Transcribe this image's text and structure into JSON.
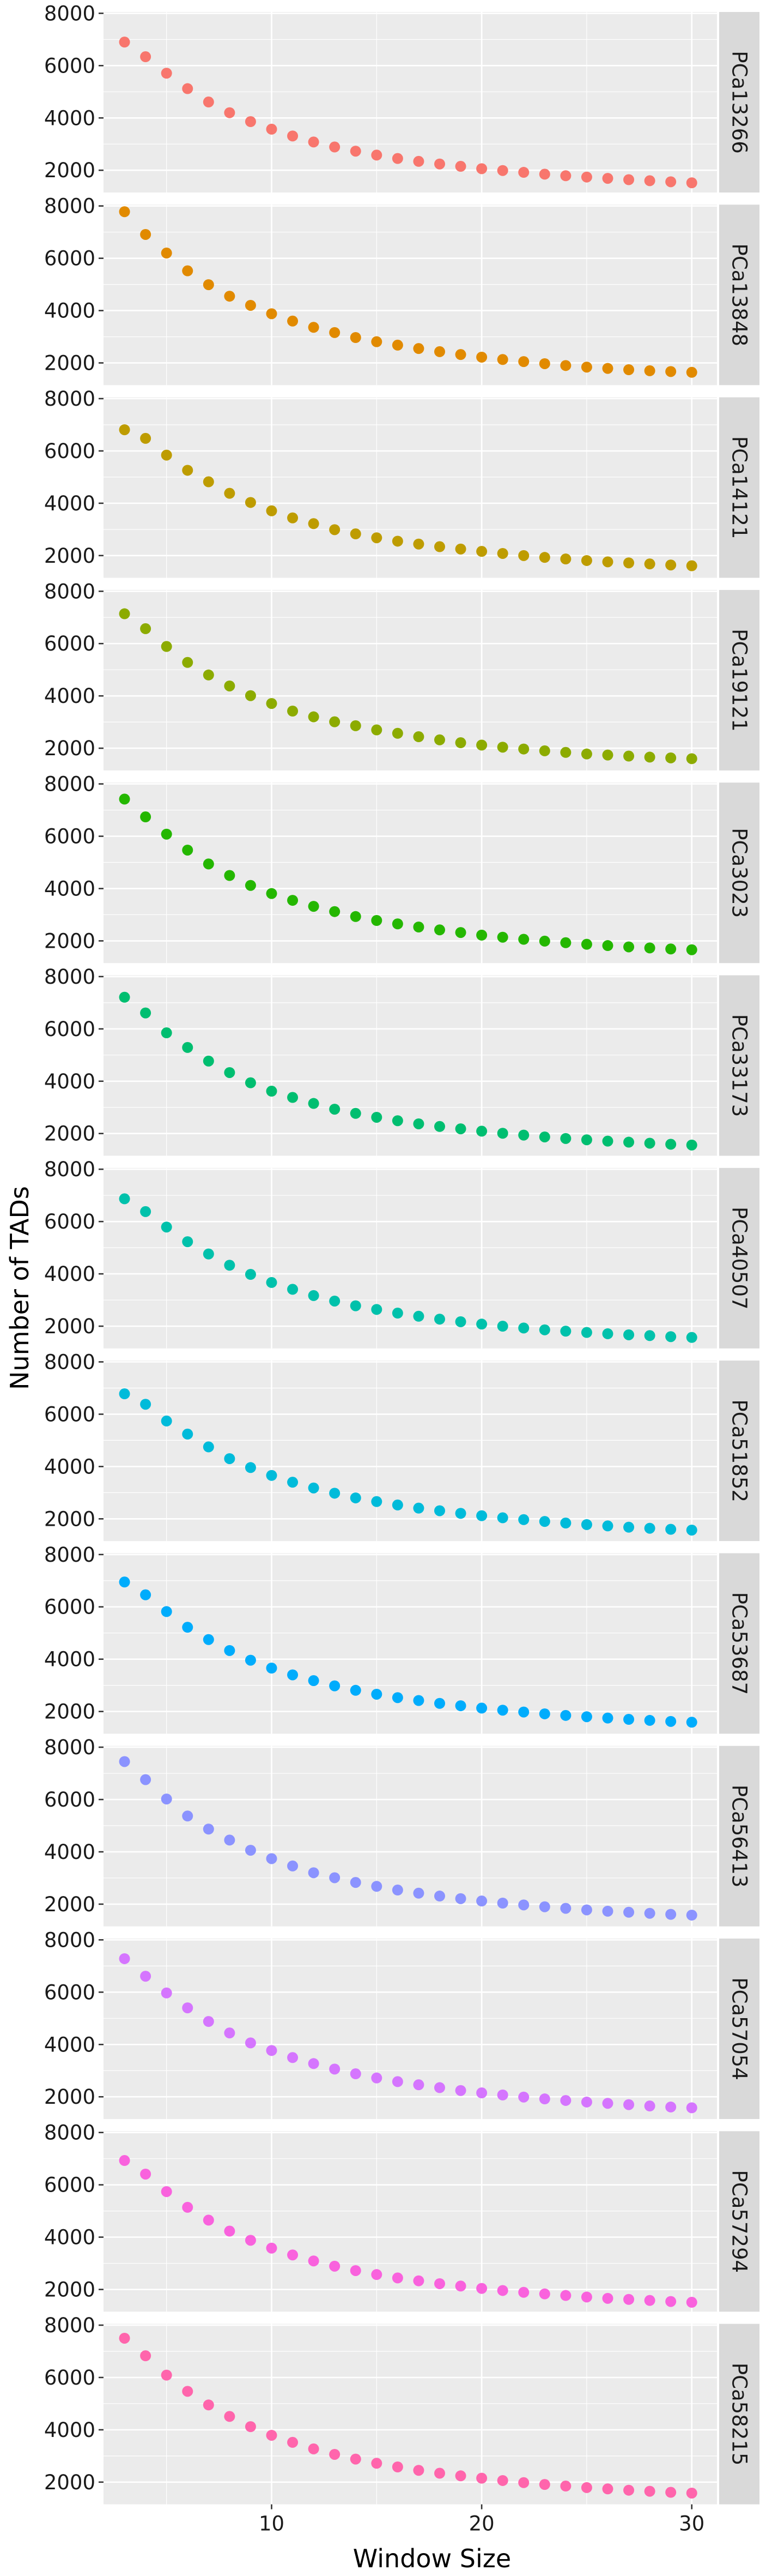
{
  "chart_data": {
    "type": "scatter",
    "xlabel": "Window Size",
    "ylabel": "Number of TADs",
    "x": [
      3,
      4,
      5,
      6,
      7,
      8,
      9,
      10,
      11,
      12,
      13,
      14,
      15,
      16,
      17,
      18,
      19,
      20,
      21,
      22,
      23,
      24,
      25,
      26,
      27,
      28,
      29,
      30
    ],
    "xlim": [
      2,
      31.2
    ],
    "x_ticks": [
      10,
      20,
      30
    ],
    "ylim": [
      1150,
      8050
    ],
    "y_ticks": [
      2000,
      4000,
      6000,
      8000
    ],
    "grid": true,
    "facet": "rows",
    "series": [
      {
        "name": "PCa13266",
        "color": "#F8766D",
        "values": [
          6900,
          6340,
          5710,
          5120,
          4610,
          4200,
          3860,
          3570,
          3310,
          3080,
          2890,
          2730,
          2580,
          2450,
          2340,
          2240,
          2150,
          2060,
          1990,
          1920,
          1850,
          1790,
          1740,
          1690,
          1640,
          1600,
          1560,
          1520
        ]
      },
      {
        "name": "PCa13848",
        "color": "#E18A00",
        "values": [
          7780,
          6910,
          6200,
          5520,
          4990,
          4550,
          4200,
          3880,
          3600,
          3360,
          3160,
          2970,
          2810,
          2680,
          2550,
          2430,
          2320,
          2220,
          2130,
          2050,
          1970,
          1900,
          1840,
          1790,
          1740,
          1700,
          1670,
          1640
        ]
      },
      {
        "name": "PCa14121",
        "color": "#BE9C00",
        "values": [
          6810,
          6480,
          5840,
          5260,
          4820,
          4380,
          4030,
          3710,
          3440,
          3220,
          2990,
          2830,
          2680,
          2550,
          2440,
          2340,
          2250,
          2160,
          2080,
          2000,
          1930,
          1870,
          1810,
          1760,
          1720,
          1680,
          1640,
          1610
        ]
      },
      {
        "name": "PCa19121",
        "color": "#8CAB00",
        "values": [
          7140,
          6570,
          5890,
          5280,
          4800,
          4380,
          4010,
          3710,
          3420,
          3200,
          3010,
          2860,
          2700,
          2570,
          2440,
          2320,
          2210,
          2120,
          2040,
          1970,
          1900,
          1840,
          1780,
          1740,
          1700,
          1660,
          1630,
          1600
        ]
      },
      {
        "name": "PCa3023",
        "color": "#24B700",
        "values": [
          7420,
          6740,
          6080,
          5470,
          4940,
          4500,
          4120,
          3810,
          3550,
          3320,
          3120,
          2930,
          2780,
          2650,
          2530,
          2420,
          2320,
          2220,
          2140,
          2060,
          1990,
          1930,
          1870,
          1820,
          1770,
          1730,
          1690,
          1660
        ]
      },
      {
        "name": "PCa33173",
        "color": "#00BE70",
        "values": [
          7210,
          6610,
          5850,
          5290,
          4770,
          4330,
          3940,
          3620,
          3380,
          3150,
          2930,
          2770,
          2620,
          2490,
          2370,
          2270,
          2180,
          2090,
          2010,
          1940,
          1870,
          1810,
          1760,
          1710,
          1670,
          1630,
          1590,
          1560
        ]
      },
      {
        "name": "PCa40507",
        "color": "#00C1AB",
        "values": [
          6870,
          6380,
          5790,
          5230,
          4760,
          4330,
          3980,
          3670,
          3410,
          3170,
          2960,
          2780,
          2640,
          2500,
          2380,
          2270,
          2170,
          2080,
          2000,
          1930,
          1860,
          1810,
          1760,
          1710,
          1670,
          1640,
          1600,
          1570
        ]
      },
      {
        "name": "PCa51852",
        "color": "#00BBDA",
        "values": [
          6780,
          6380,
          5740,
          5240,
          4750,
          4300,
          3960,
          3660,
          3400,
          3180,
          2980,
          2800,
          2660,
          2530,
          2410,
          2310,
          2210,
          2120,
          2040,
          1970,
          1900,
          1840,
          1780,
          1730,
          1680,
          1640,
          1600,
          1570
        ]
      },
      {
        "name": "PCa53687",
        "color": "#00ACFC",
        "values": [
          6950,
          6460,
          5820,
          5220,
          4750,
          4330,
          3960,
          3660,
          3400,
          3180,
          2980,
          2810,
          2660,
          2530,
          2420,
          2310,
          2220,
          2130,
          2050,
          1980,
          1910,
          1850,
          1800,
          1750,
          1700,
          1660,
          1620,
          1590
        ]
      },
      {
        "name": "PCa56413",
        "color": "#8B93FF",
        "values": [
          7450,
          6760,
          6020,
          5370,
          4870,
          4450,
          4060,
          3740,
          3460,
          3200,
          3010,
          2830,
          2680,
          2540,
          2420,
          2310,
          2210,
          2120,
          2040,
          1970,
          1900,
          1840,
          1780,
          1730,
          1690,
          1650,
          1610,
          1580
        ]
      },
      {
        "name": "PCa57054",
        "color": "#D575FE",
        "values": [
          7280,
          6610,
          5970,
          5400,
          4880,
          4440,
          4060,
          3770,
          3500,
          3270,
          3060,
          2880,
          2720,
          2580,
          2460,
          2350,
          2240,
          2150,
          2070,
          1990,
          1920,
          1860,
          1800,
          1750,
          1700,
          1650,
          1610,
          1580
        ]
      },
      {
        "name": "PCa57294",
        "color": "#F962DD",
        "values": [
          6930,
          6410,
          5740,
          5140,
          4650,
          4230,
          3880,
          3580,
          3320,
          3090,
          2890,
          2720,
          2570,
          2440,
          2330,
          2220,
          2130,
          2040,
          1960,
          1890,
          1830,
          1770,
          1710,
          1660,
          1620,
          1580,
          1540,
          1510
        ]
      },
      {
        "name": "PCa58215",
        "color": "#FF65AC",
        "values": [
          7500,
          6830,
          6090,
          5470,
          4950,
          4510,
          4120,
          3790,
          3520,
          3270,
          3060,
          2880,
          2720,
          2580,
          2450,
          2340,
          2240,
          2150,
          2060,
          1980,
          1910,
          1850,
          1790,
          1740,
          1690,
          1650,
          1610,
          1580
        ]
      }
    ]
  }
}
